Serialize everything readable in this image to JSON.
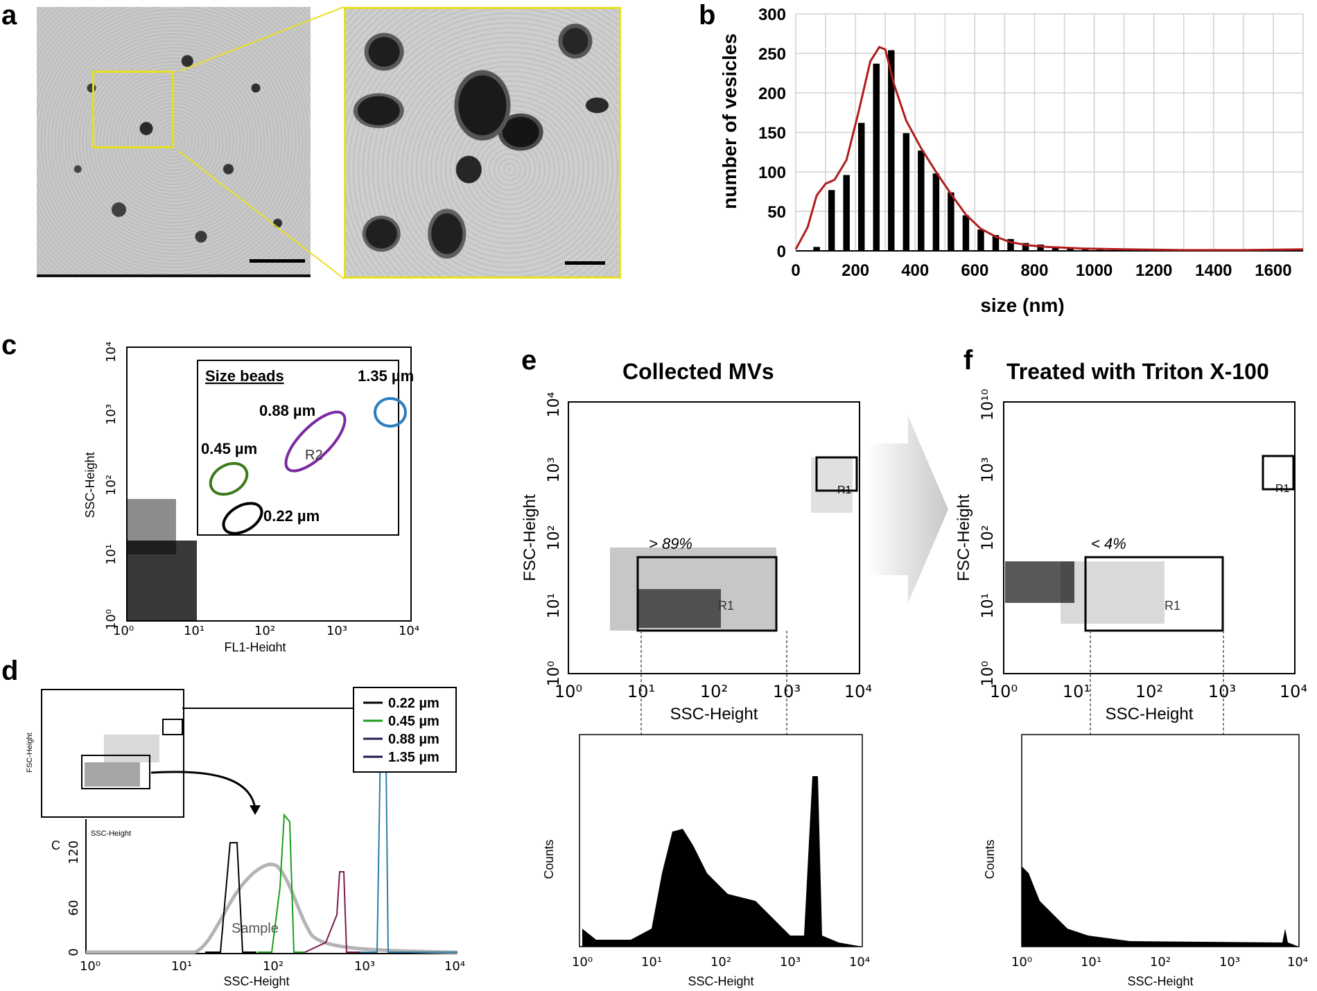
{
  "panels": {
    "a": {
      "letter": "a"
    },
    "b": {
      "letter": "b"
    },
    "c": {
      "letter": "c"
    },
    "d": {
      "letter": "d"
    },
    "e": {
      "letter": "e",
      "title": "Collected MVs"
    },
    "f": {
      "letter": "f",
      "title": "Treated with Triton X-100"
    }
  },
  "panel_c": {
    "xlabel": "FL1-Height",
    "ylabel": "SSC-Height",
    "legend_title": "Size beads",
    "beads": [
      "0.22 µm",
      "0.45 µm",
      "0.88 µm",
      "1.35 µm"
    ],
    "gate_label": "R2"
  },
  "panel_d": {
    "xlabel": "SSC-Height",
    "inset_xlabel": "SSC-Height",
    "inset_ylabel": "FSC-Height",
    "ylabel_fragment": "C",
    "sample_label": "Sample",
    "legend": [
      "0.22 µm",
      "0.45 µm",
      "0.88 µm",
      "1.35 µm"
    ],
    "colors": {
      "b022": "#000000",
      "b045": "#1a9e1a",
      "b088": "#7a1a4e",
      "b135": "#2a7fa8",
      "sample": "#b4b4b4"
    }
  },
  "panel_e": {
    "scatter_xlabel": "SSC-Height",
    "scatter_ylabel": "FSC-Height",
    "hist_xlabel": "SSC-Height",
    "hist_ylabel": "Counts",
    "gate_pct": "> 89%",
    "gate_r1": "R1",
    "gate_r1_corner": "R1"
  },
  "panel_f": {
    "scatter_xlabel": "SSC-Height",
    "scatter_ylabel": "FSC-Height",
    "hist_xlabel": "SSC-Height",
    "hist_ylabel": "Counts",
    "gate_pct": "< 4%",
    "gate_r1": "R1",
    "gate_r1_corner": "R1"
  },
  "chart_data": [
    {
      "id": "b",
      "type": "bar",
      "title": "",
      "xlabel": "size (nm)",
      "ylabel": "number of vesicles",
      "xlim": [
        0,
        1700
      ],
      "ylim": [
        0,
        300
      ],
      "x_ticks": [
        "0",
        "200",
        "400",
        "600",
        "800",
        "1000",
        "1200",
        "1400",
        "1600"
      ],
      "y_ticks": [
        "0",
        "50",
        "100",
        "150",
        "200",
        "250",
        "300"
      ],
      "grid": true,
      "bin_centers": [
        70,
        120,
        170,
        220,
        270,
        320,
        370,
        420,
        470,
        520,
        570,
        620,
        670,
        720,
        770,
        820,
        870,
        920,
        970,
        1020,
        1070,
        1120,
        1170,
        1220,
        1270,
        1320,
        1370,
        1420,
        1470,
        1520,
        1570,
        1620,
        1670
      ],
      "values": [
        5,
        77,
        96,
        162,
        237,
        254,
        149,
        127,
        98,
        74,
        45,
        27,
        20,
        15,
        10,
        8,
        5,
        4,
        3,
        2,
        2,
        2,
        1,
        1,
        1,
        1,
        1,
        1,
        1,
        1,
        1,
        1,
        2
      ],
      "fit_curve": {
        "x": [
          0,
          40,
          70,
          100,
          130,
          170,
          210,
          250,
          280,
          300,
          330,
          370,
          420,
          470,
          520,
          570,
          620,
          670,
          720,
          780,
          840,
          900,
          960,
          1100,
          1300,
          1500,
          1700
        ],
        "y": [
          2,
          30,
          70,
          85,
          90,
          115,
          175,
          240,
          258,
          255,
          210,
          165,
          130,
          100,
          72,
          46,
          28,
          18,
          11,
          7,
          5,
          4,
          3,
          2,
          1,
          1,
          2
        ]
      }
    }
  ]
}
